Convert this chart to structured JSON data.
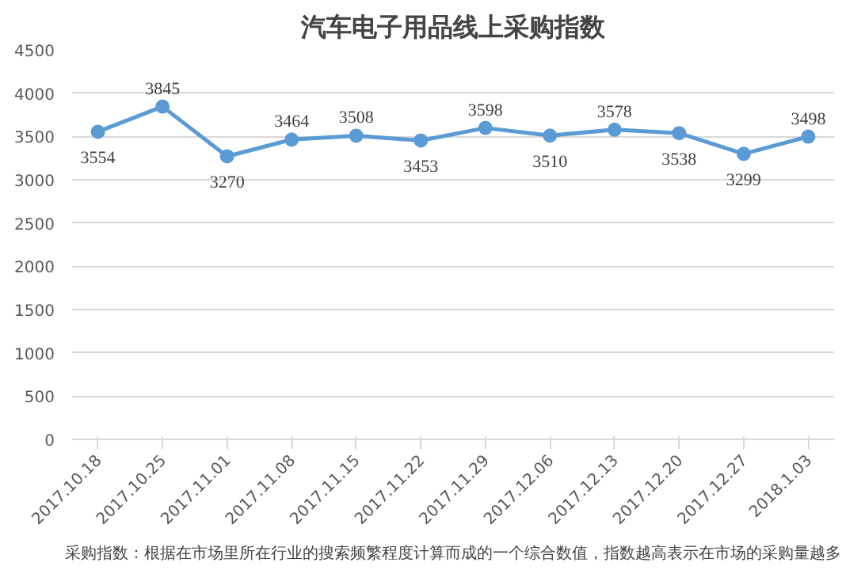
{
  "chart_data": {
    "type": "line",
    "title": "汽车电子用品线上采购指数",
    "categories": [
      "2017.10.18",
      "2017.10.25",
      "2017.11.01",
      "2017.11.08",
      "2017.11.15",
      "2017.11.22",
      "2017.11.29",
      "2017.12.06",
      "2017.12.13",
      "2017.12.20",
      "2017.12.27",
      "2018.1.03"
    ],
    "series": [
      {
        "color": "#5b9bd5",
        "values": [
          3554,
          3845,
          3270,
          3464,
          3508,
          3453,
          3598,
          3510,
          3578,
          3538,
          3299,
          3498
        ]
      }
    ],
    "ylim": [
      0,
      4500
    ],
    "yticks": [
      0,
      500,
      1000,
      1500,
      2000,
      2500,
      3000,
      3500,
      4000,
      4500
    ],
    "grid": "y",
    "marker": "circle",
    "line_style": "solid",
    "data_labels": true,
    "annotations": [
      "采购指数：根据在市场里所在行业的搜索频繁程度计算而成的一个综合数值，指数越高表示在市场的采购量越多"
    ]
  }
}
